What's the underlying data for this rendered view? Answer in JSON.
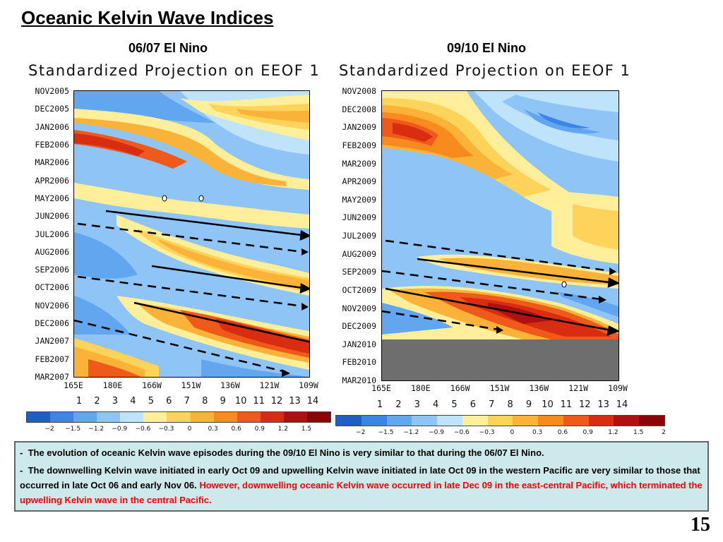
{
  "page": {
    "title": "Oceanic Kelvin Wave Indices",
    "page_number": "15"
  },
  "panels": [
    {
      "subtitle": "06/07 El Nino",
      "plot_title": "Standardized Projection on EEOF 1",
      "months": [
        "NOV2005",
        "DEC2005",
        "JAN2006",
        "FEB2006",
        "MAR2006",
        "APR2006",
        "MAY2006",
        "JUN2006",
        "JUL2006",
        "AUG2006",
        "SEP2006",
        "OCT2006",
        "NOV2006",
        "DEC2006",
        "JAN2007",
        "FEB2007",
        "MAR2007"
      ],
      "lon_labels": [
        "165E",
        "180E",
        "166W",
        "151W",
        "136W",
        "121W",
        "109W"
      ],
      "index_labels": [
        "1",
        "2",
        "3",
        "4",
        "5",
        "6",
        "7",
        "8",
        "9",
        "10",
        "11",
        "12",
        "13",
        "14"
      ],
      "colorbar_labels": [
        "−2",
        "−1.5",
        "−1.2",
        "−0.9",
        "−0.6",
        "−0.3",
        "0",
        "0.3",
        "0.6",
        "0.9",
        "1.2",
        "1.5"
      ]
    },
    {
      "subtitle": "09/10 El Nino",
      "plot_title": "Standardized Projection on EEOF 1",
      "months": [
        "NOV2008",
        "DEC2008",
        "JAN2009",
        "FEB2009",
        "MAR2009",
        "APR2009",
        "MAY2009",
        "JUN2009",
        "JUL2009",
        "AUG2009",
        "SEP2009",
        "OCT2009",
        "NOV2009",
        "DEC2009",
        "JAN2010",
        "FEB2010",
        "MAR2010"
      ],
      "lon_labels": [
        "165E",
        "180E",
        "166W",
        "151W",
        "136W",
        "121W",
        "109W"
      ],
      "index_labels": [
        "1",
        "2",
        "3",
        "4",
        "5",
        "6",
        "7",
        "8",
        "9",
        "10",
        "11",
        "12",
        "13",
        "14"
      ],
      "colorbar_labels": [
        "−2",
        "−1.5",
        "−1.2",
        "−0.9",
        "−0.6",
        "−0.3",
        "0",
        "0.3",
        "0.6",
        "0.9",
        "1.2",
        "1.5",
        "2"
      ]
    }
  ],
  "palette": [
    "#1f5fc4",
    "#3a86e6",
    "#62a6f0",
    "#8ec4f6",
    "#bfe3fa",
    "#ffee9a",
    "#fdd35a",
    "#fbb238",
    "#f98a1e",
    "#ef5a1a",
    "#d92d12",
    "#b01010",
    "#8a0606"
  ],
  "notes": {
    "n1": "The evolution of oceanic Kelvin wave episodes during the 09/10 El Nino is very similar to that during the 06/07 El Nino.",
    "n2_black": "The downwelling Kelvin wave initiated in early Oct  09 and upwelling Kelvin wave initiated in late Oct  09 in the western Pacific are very similar to those that  occurred in late Oct 06 and early Nov 06.",
    "n2_red": "However, downwelling oceanic Kelvin wave occurred in late Dec 09 in the east-central Pacific, which terminated the upwelling Kelvin wave in the central Pacific.",
    "bullet": "-"
  },
  "chart_data": [
    {
      "type": "heatmap",
      "title": "Standardized Projection on EEOF 1",
      "subtitle": "06/07 El Nino",
      "y": [
        "NOV2005",
        "DEC2005",
        "JAN2006",
        "FEB2006",
        "MAR2006",
        "APR2006",
        "MAY2006",
        "JUN2006",
        "JUL2006",
        "AUG2006",
        "SEP2006",
        "OCT2006",
        "NOV2006",
        "DEC2006",
        "JAN2007",
        "FEB2007",
        "MAR2007"
      ],
      "x": [
        "165E",
        "180E",
        "166W",
        "151W",
        "136W",
        "121W",
        "109W"
      ],
      "colorbar": [
        -2,
        -1.5,
        -1.2,
        -0.9,
        -0.6,
        -0.3,
        0,
        0.3,
        0.6,
        0.9,
        1.2,
        1.5
      ]
    },
    {
      "type": "heatmap",
      "title": "Standardized Projection on EEOF 1",
      "subtitle": "09/10 El Nino",
      "y": [
        "NOV2008",
        "DEC2008",
        "JAN2009",
        "FEB2009",
        "MAR2009",
        "APR2009",
        "MAY2009",
        "JUN2009",
        "JUL2009",
        "AUG2009",
        "SEP2009",
        "OCT2009",
        "NOV2009",
        "DEC2009",
        "JAN2010",
        "FEB2010",
        "MAR2010"
      ],
      "x": [
        "165E",
        "180E",
        "166W",
        "151W",
        "136W",
        "121W",
        "109W"
      ],
      "colorbar": [
        -2,
        -1.5,
        -1.2,
        -0.9,
        -0.6,
        -0.3,
        0,
        0.3,
        0.6,
        0.9,
        1.2,
        1.5,
        2
      ]
    }
  ]
}
